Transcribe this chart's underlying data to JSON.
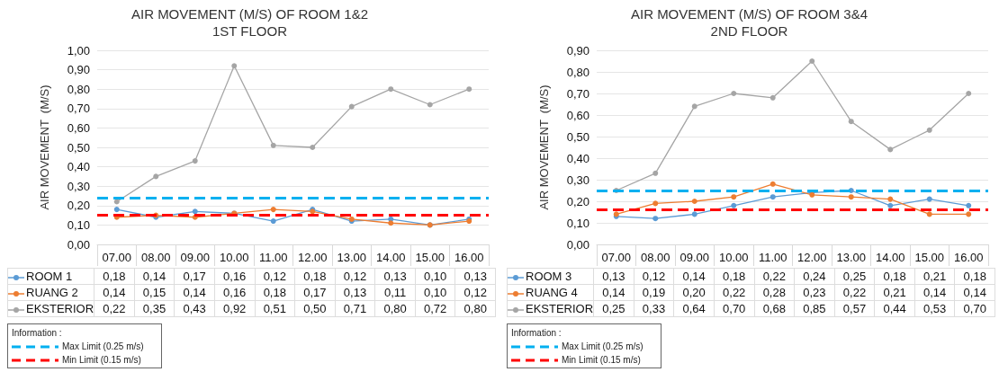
{
  "chart_data": [
    {
      "type": "line",
      "title": "AIR MOVEMENT (M/S) OF ROOM 1&2",
      "subtitle": "1ST FLOOR",
      "ylabel": "AIR MOVEMENT  (M/S)",
      "categories": [
        "07.00",
        "08.00",
        "09.00",
        "10.00",
        "11.00",
        "12.00",
        "13.00",
        "14.00",
        "15.00",
        "16.00"
      ],
      "series": [
        {
          "name": "ROOM 1",
          "color": "#5b9bd5",
          "values": [
            0.18,
            0.14,
            0.17,
            0.16,
            0.12,
            0.18,
            0.12,
            0.13,
            0.1,
            0.13
          ],
          "value_labels": [
            "0,18",
            "0,14",
            "0,17",
            "0,16",
            "0,12",
            "0,18",
            "0,12",
            "0,13",
            "0,10",
            "0,13"
          ]
        },
        {
          "name": "RUANG 2",
          "color": "#ed7d31",
          "values": [
            0.14,
            0.15,
            0.14,
            0.16,
            0.18,
            0.17,
            0.13,
            0.11,
            0.1,
            0.12
          ],
          "value_labels": [
            "0,14",
            "0,15",
            "0,14",
            "0,16",
            "0,18",
            "0,17",
            "0,13",
            "0,11",
            "0,10",
            "0,12"
          ]
        },
        {
          "name": "EKSTERIOR",
          "color": "#a5a5a5",
          "values": [
            0.22,
            0.35,
            0.43,
            0.92,
            0.51,
            0.5,
            0.71,
            0.8,
            0.72,
            0.8
          ],
          "value_labels": [
            "0,22",
            "0,35",
            "0,43",
            "0,92",
            "0,51",
            "0,50",
            "0,71",
            "0,80",
            "0,72",
            "0,80"
          ]
        }
      ],
      "ylim": [
        0,
        1
      ],
      "yticks": [
        {
          "value": 0,
          "label": "0,00"
        },
        {
          "value": 0.1,
          "label": "0,10"
        },
        {
          "value": 0.2,
          "label": "0,20"
        },
        {
          "value": 0.3,
          "label": "0,30"
        },
        {
          "value": 0.4,
          "label": "0,40"
        },
        {
          "value": 0.5,
          "label": "0,50"
        },
        {
          "value": 0.6,
          "label": "0,60"
        },
        {
          "value": 0.7,
          "label": "0,70"
        },
        {
          "value": 0.8,
          "label": "0,80"
        },
        {
          "value": 0.9,
          "label": "0,90"
        },
        {
          "value": 1.0,
          "label": "1,00"
        }
      ],
      "ref_lines": [
        {
          "axis": "y",
          "value": 0.24,
          "label": "Max Limit (0.25 m/s)",
          "color": "#00b0f0",
          "line_style": "dashed"
        },
        {
          "axis": "y",
          "value": 0.15,
          "label": "Min Limit (0.15 m/s)",
          "color": "#ff0000",
          "line_style": "dashed"
        }
      ],
      "annotations": [
        "Information :"
      ],
      "grid": "y",
      "legend": "bottom",
      "marker": "circle",
      "line_style": "solid"
    },
    {
      "type": "line",
      "title": "AIR MOVEMENT (M/S) OF ROOM 3&4",
      "subtitle": "2ND FLOOR",
      "ylabel": "AIR MOVEMENT  (M/S)",
      "categories": [
        "07.00",
        "08.00",
        "09.00",
        "10.00",
        "11.00",
        "12.00",
        "13.00",
        "14.00",
        "15.00",
        "16.00"
      ],
      "series": [
        {
          "name": "ROOM 3",
          "color": "#5b9bd5",
          "values": [
            0.13,
            0.12,
            0.14,
            0.18,
            0.22,
            0.24,
            0.25,
            0.18,
            0.21,
            0.18
          ],
          "value_labels": [
            "0,13",
            "0,12",
            "0,14",
            "0,18",
            "0,22",
            "0,24",
            "0,25",
            "0,18",
            "0,21",
            "0,18"
          ]
        },
        {
          "name": "RUANG 4",
          "color": "#ed7d31",
          "values": [
            0.14,
            0.19,
            0.2,
            0.22,
            0.28,
            0.23,
            0.22,
            0.21,
            0.14,
            0.14
          ],
          "value_labels": [
            "0,14",
            "0,19",
            "0,20",
            "0,22",
            "0,28",
            "0,23",
            "0,22",
            "0,21",
            "0,14",
            "0,14"
          ]
        },
        {
          "name": "EKSTERIOR",
          "color": "#a5a5a5",
          "values": [
            0.25,
            0.33,
            0.64,
            0.7,
            0.68,
            0.85,
            0.57,
            0.44,
            0.53,
            0.7
          ],
          "value_labels": [
            "0,25",
            "0,33",
            "0,64",
            "0,70",
            "0,68",
            "0,85",
            "0,57",
            "0,44",
            "0,53",
            "0,70"
          ]
        }
      ],
      "ylim": [
        0,
        0.9
      ],
      "yticks": [
        {
          "value": 0,
          "label": "0,00"
        },
        {
          "value": 0.1,
          "label": "0,10"
        },
        {
          "value": 0.2,
          "label": "0,20"
        },
        {
          "value": 0.3,
          "label": "0,30"
        },
        {
          "value": 0.4,
          "label": "0,40"
        },
        {
          "value": 0.5,
          "label": "0,50"
        },
        {
          "value": 0.6,
          "label": "0,60"
        },
        {
          "value": 0.7,
          "label": "0,70"
        },
        {
          "value": 0.8,
          "label": "0,80"
        },
        {
          "value": 0.9,
          "label": "0,90"
        }
      ],
      "ref_lines": [
        {
          "axis": "y",
          "value": 0.25,
          "label": "Max Limit (0.25 m/s)",
          "color": "#00b0f0",
          "line_style": "dashed"
        },
        {
          "axis": "y",
          "value": 0.16,
          "label": "Min Limit (0.15 m/s)",
          "color": "#ff0000",
          "line_style": "dashed"
        }
      ],
      "annotations": [
        "Information :"
      ],
      "grid": "y",
      "legend": "bottom",
      "marker": "circle",
      "line_style": "solid"
    }
  ]
}
